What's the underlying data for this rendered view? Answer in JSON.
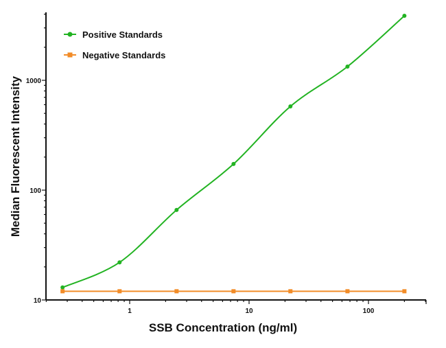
{
  "chart_data": {
    "type": "line",
    "title": "",
    "xlabel": "SSB Concentration (ng/ml)",
    "ylabel": "Median Fluorescent Intensity",
    "xscale": "log",
    "yscale": "log",
    "xlim": [
      0.2,
      250
    ],
    "ylim": [
      10,
      4500
    ],
    "xticks": [
      {
        "value": 1,
        "label": "1"
      },
      {
        "value": 10,
        "label": "10"
      },
      {
        "value": 100,
        "label": "100"
      }
    ],
    "yticks": [
      {
        "value": 10,
        "label": "10"
      },
      {
        "value": 100,
        "label": "100"
      },
      {
        "value": 1000,
        "label": "1000"
      }
    ],
    "grid": false,
    "legend_position": "top-left",
    "series": [
      {
        "name": "Positive Standards",
        "color": "#22b322",
        "marker": "circle",
        "x": [
          0.274,
          0.823,
          2.47,
          7.41,
          22.2,
          66.7,
          200
        ],
        "y": [
          13,
          22,
          66,
          173,
          579,
          1334,
          3870
        ]
      },
      {
        "name": "Negative Standards",
        "color": "#f28c28",
        "marker": "square",
        "x": [
          0.274,
          0.823,
          2.47,
          7.41,
          22.2,
          66.7,
          200
        ],
        "y": [
          12,
          12,
          12,
          12,
          12,
          12,
          12
        ]
      }
    ]
  }
}
